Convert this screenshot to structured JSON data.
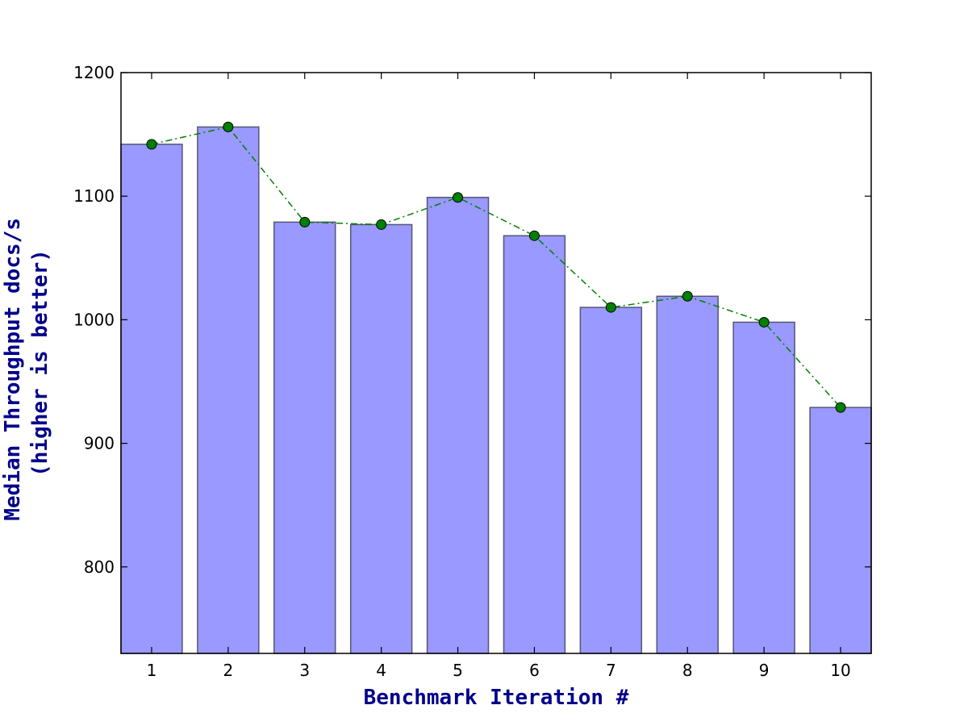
{
  "chart_data": {
    "type": "bar",
    "categories": [
      "1",
      "2",
      "3",
      "4",
      "5",
      "6",
      "7",
      "8",
      "9",
      "10"
    ],
    "values": [
      1142,
      1156,
      1079,
      1077,
      1099,
      1068,
      1010,
      1019,
      998,
      929
    ],
    "overlay": {
      "type": "line",
      "style": "dash-dot",
      "markers": "circle",
      "values": [
        1142,
        1156,
        1079,
        1077,
        1099,
        1068,
        1010,
        1019,
        998,
        929
      ]
    },
    "title": "",
    "xlabel": "Benchmark Iteration #",
    "ylabel_lines": [
      "Median Throughput docs/s",
      "(higher is better)"
    ],
    "ylim": [
      730,
      1200
    ],
    "xlim": [
      0.6,
      10.4
    ],
    "yticks": [
      800,
      900,
      1000,
      1100,
      1200
    ],
    "grid": false,
    "legend": "none",
    "colors": {
      "bar_fill": "#9999ff",
      "bar_edge": "#555577",
      "line": "#008000",
      "marker": "#008000",
      "axis_title": "#00008b"
    }
  }
}
